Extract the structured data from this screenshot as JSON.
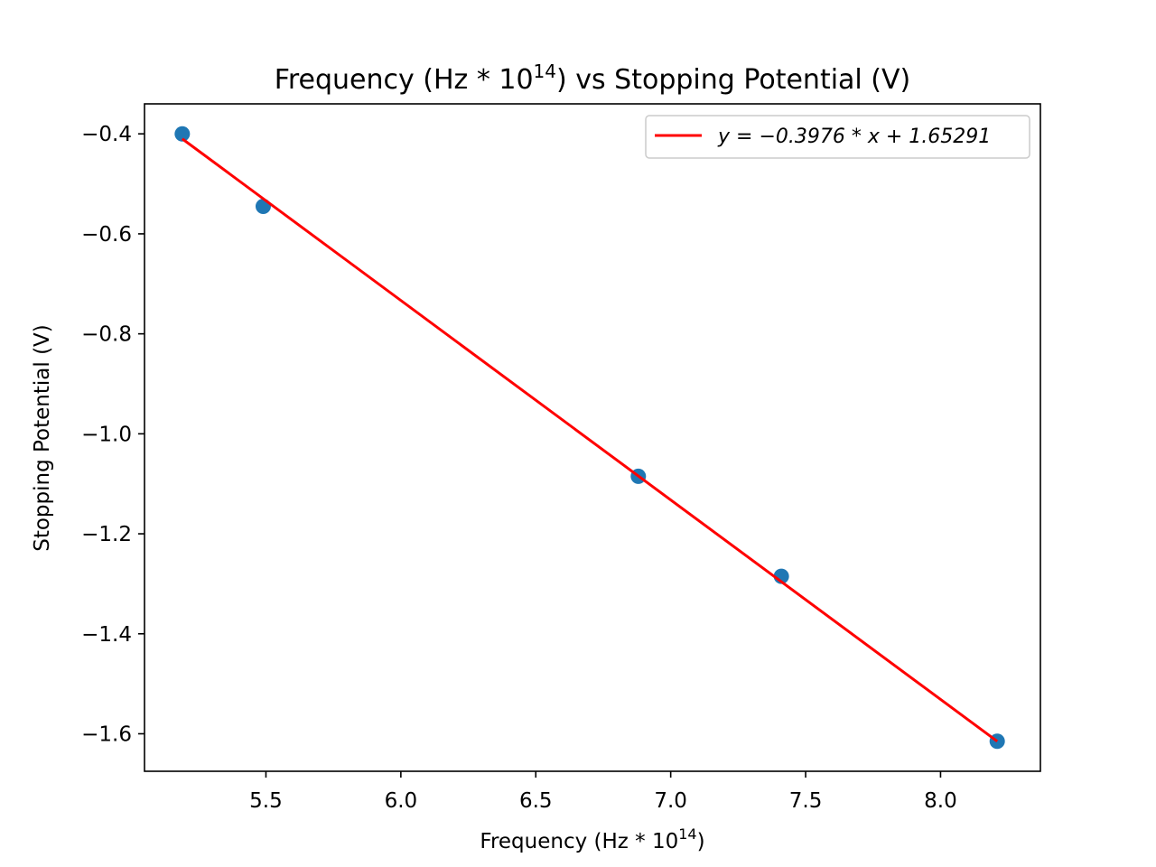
{
  "chart_data": {
    "type": "scatter",
    "title": "Frequency (Hz * 10",
    "title_superscript": "14",
    "title_suffix": ") vs Stopping Potential (V)",
    "xlabel": "Frequency (Hz * 10",
    "xlabel_superscript": "14",
    "xlabel_suffix": ")",
    "ylabel": "Stopping Potential (V)",
    "xlim": [
      5.05,
      8.37
    ],
    "ylim": [
      -1.675,
      -0.34
    ],
    "xticks": [
      5.5,
      6.0,
      6.5,
      7.0,
      7.5,
      8.0
    ],
    "xtick_labels": [
      "5.5",
      "6.0",
      "6.5",
      "7.0",
      "7.5",
      "8.0"
    ],
    "yticks": [
      -0.4,
      -0.6,
      -0.8,
      -1.0,
      -1.2,
      -1.4,
      -1.6
    ],
    "ytick_labels": [
      "−0.4",
      "−0.6",
      "−0.8",
      "−1.0",
      "−1.2",
      "−1.4",
      "−1.6"
    ],
    "grid": false,
    "legend_position": "top-right",
    "series": [
      {
        "kind": "scatter",
        "x": [
          5.19,
          5.49,
          6.88,
          7.41,
          8.21
        ],
        "y": [
          -0.4,
          -0.545,
          -1.085,
          -1.285,
          -1.615
        ],
        "color": "#1f77b4"
      },
      {
        "kind": "line",
        "name": "y = −0.3976 * x + 1.65291",
        "x": [
          5.19,
          8.21
        ],
        "y": [
          -0.41,
          -1.615
        ],
        "color": "#ff0000"
      }
    ]
  }
}
